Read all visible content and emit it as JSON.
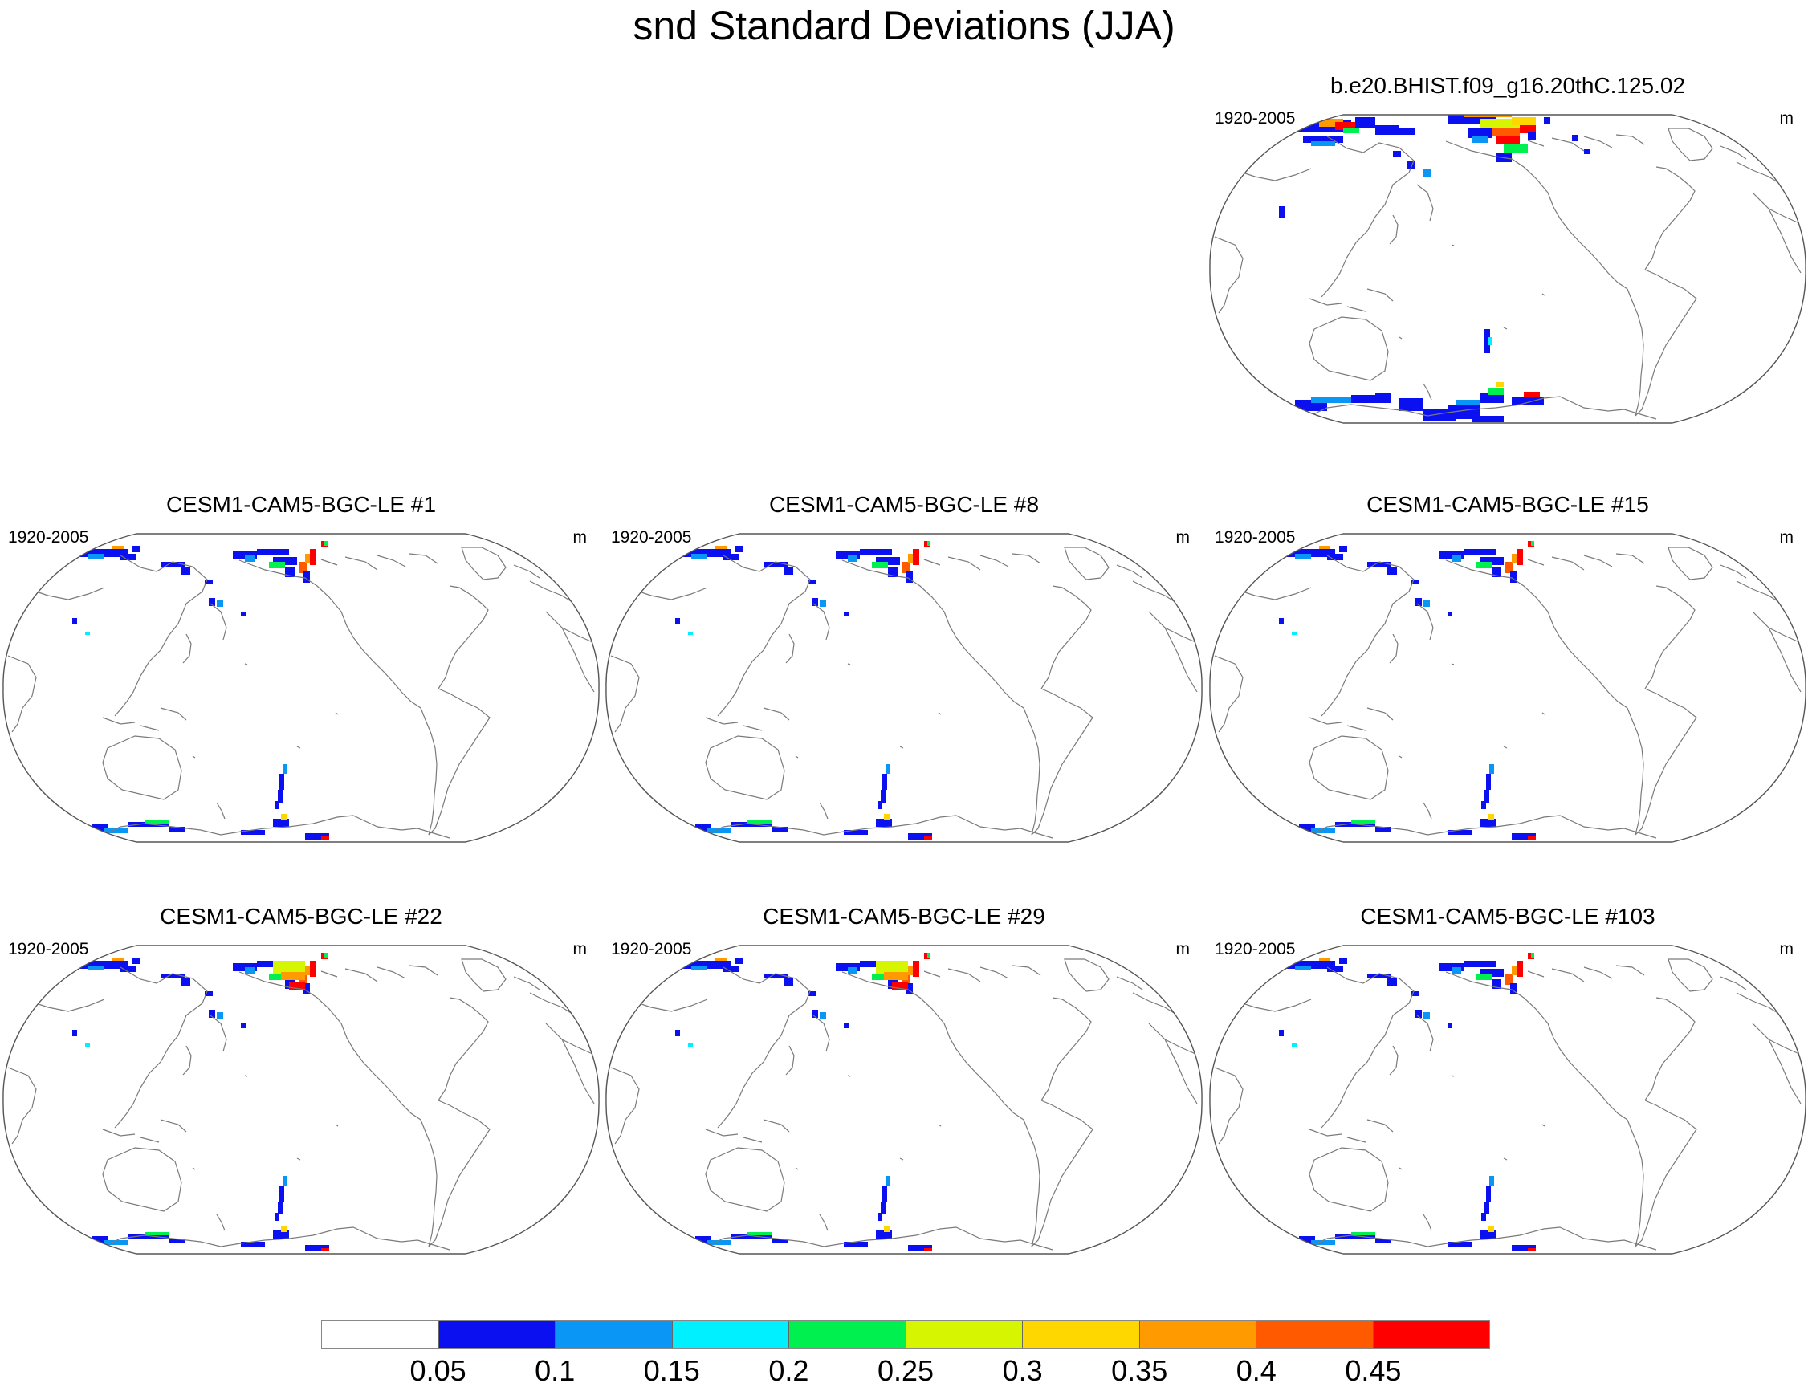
{
  "title": "snd Standard Deviations (JJA)",
  "panels": [
    {
      "title": "b.e20.BHIST.f09_g16.20thC.125.02",
      "period": "1920-2005",
      "unit": "m"
    },
    {
      "title": "CESM1-CAM5-BGC-LE #1",
      "period": "1920-2005",
      "unit": "m"
    },
    {
      "title": "CESM1-CAM5-BGC-LE #8",
      "period": "1920-2005",
      "unit": "m"
    },
    {
      "title": "CESM1-CAM5-BGC-LE #15",
      "period": "1920-2005",
      "unit": "m"
    },
    {
      "title": "CESM1-CAM5-BGC-LE #22",
      "period": "1920-2005",
      "unit": "m"
    },
    {
      "title": "CESM1-CAM5-BGC-LE #29",
      "period": "1920-2005",
      "unit": "m"
    },
    {
      "title": "CESM1-CAM5-BGC-LE #103",
      "period": "1920-2005",
      "unit": "m"
    }
  ],
  "colorbar": {
    "labels": [
      "0.05",
      "0.1",
      "0.15",
      "0.2",
      "0.25",
      "0.3",
      "0.35",
      "0.4",
      "0.45"
    ],
    "colors": [
      "#ffffff",
      "#0a10f0",
      "#0a96f5",
      "#00f0ff",
      "#00f050",
      "#d6f500",
      "#ffd700",
      "#ff9a00",
      "#ff5a00",
      "#ff0000"
    ]
  }
}
